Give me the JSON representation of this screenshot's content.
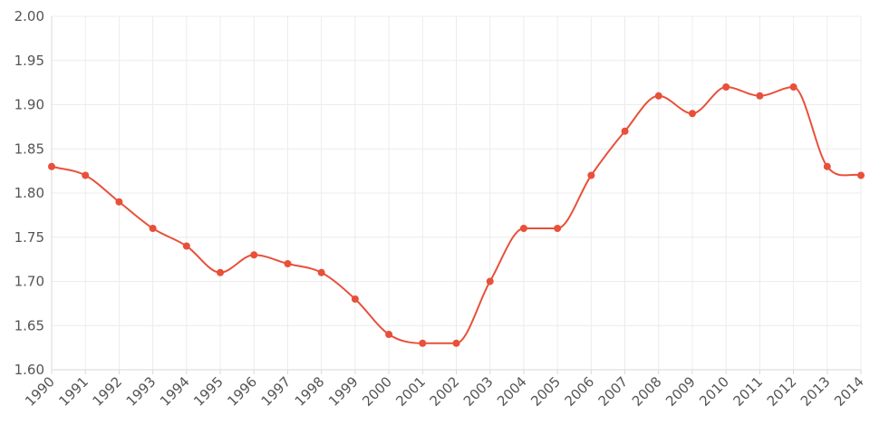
{
  "chart_data": {
    "type": "line",
    "title": "",
    "xlabel": "",
    "ylabel": "",
    "x": [
      1990,
      1991,
      1992,
      1993,
      1994,
      1995,
      1996,
      1997,
      1998,
      1999,
      2000,
      2001,
      2002,
      2003,
      2004,
      2005,
      2006,
      2007,
      2008,
      2009,
      2010,
      2011,
      2012,
      2013,
      2014
    ],
    "series": [
      {
        "values": [
          1.83,
          1.82,
          1.79,
          1.76,
          1.74,
          1.71,
          1.73,
          1.72,
          1.71,
          1.68,
          1.64,
          1.63,
          1.63,
          1.7,
          1.76,
          1.76,
          1.82,
          1.87,
          1.91,
          1.89,
          1.92,
          1.91,
          1.92,
          1.83,
          1.82
        ],
        "color": "#e8503a"
      }
    ],
    "ylim": [
      1.6,
      2.0
    ],
    "yticks": [
      "1.60",
      "1.65",
      "1.70",
      "1.75",
      "1.80",
      "1.85",
      "1.90",
      "1.95",
      "2.00"
    ],
    "xticks": [
      "1990",
      "1991",
      "1992",
      "1993",
      "1994",
      "1995",
      "1996",
      "1997",
      "1998",
      "1999",
      "2000",
      "2001",
      "2002",
      "2003",
      "2004",
      "2005",
      "2006",
      "2007",
      "2008",
      "2009",
      "2010",
      "2011",
      "2012",
      "2013",
      "2014"
    ],
    "grid": true,
    "legend": "none",
    "line_style": "smooth"
  }
}
